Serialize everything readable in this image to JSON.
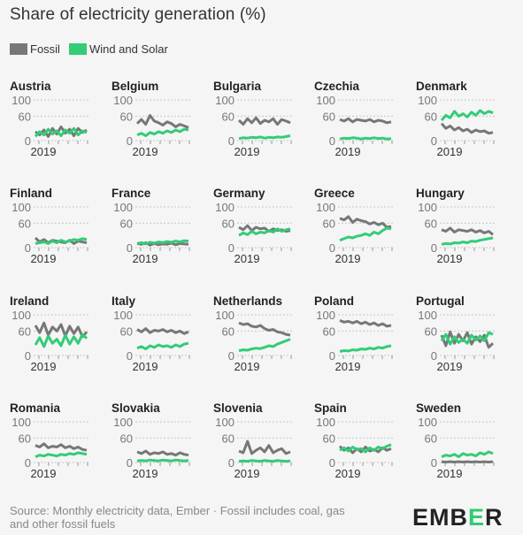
{
  "title": "Share of electricity generation (%)",
  "legend": [
    {
      "name": "Fossil",
      "color": "#777777"
    },
    {
      "name": "Wind and Solar",
      "color": "#33cc77"
    }
  ],
  "source": "Source: Monthly electricity data, Ember · Fossil includes coal, gas and other fossil fuels",
  "logo": {
    "pre": "EMB",
    "accent": "E",
    "post": "R"
  },
  "chart_data": {
    "type": "line",
    "layout": "small-multiples",
    "x_tick_label": "2019",
    "ylim": [
      0,
      100
    ],
    "y_ticks": [
      0,
      60,
      100
    ],
    "panels": [
      {
        "name": "Austria",
        "fossil": [
          22,
          14,
          26,
          10,
          30,
          16,
          34,
          18,
          28,
          12,
          30,
          20,
          26
        ],
        "wind_solar": [
          10,
          22,
          14,
          28,
          16,
          24,
          12,
          26,
          18,
          30,
          14,
          24,
          20
        ]
      },
      {
        "name": "Belgium",
        "fossil": [
          42,
          52,
          40,
          62,
          48,
          44,
          38,
          46,
          42,
          34,
          40,
          36,
          32
        ],
        "wind_solar": [
          14,
          18,
          12,
          20,
          16,
          22,
          18,
          24,
          20,
          26,
          22,
          28,
          26
        ]
      },
      {
        "name": "Bulgaria",
        "fossil": [
          50,
          40,
          54,
          44,
          56,
          42,
          50,
          46,
          54,
          40,
          52,
          48,
          44
        ],
        "wind_solar": [
          5,
          7,
          6,
          8,
          7,
          9,
          6,
          8,
          7,
          9,
          8,
          10,
          12
        ]
      },
      {
        "name": "Czechia",
        "fossil": [
          52,
          48,
          54,
          46,
          52,
          50,
          48,
          52,
          46,
          50,
          48,
          44,
          46
        ],
        "wind_solar": [
          4,
          6,
          5,
          7,
          6,
          4,
          6,
          5,
          7,
          5,
          6,
          4,
          5
        ]
      },
      {
        "name": "Denmark",
        "fossil": [
          42,
          30,
          36,
          26,
          32,
          24,
          28,
          20,
          26,
          22,
          24,
          18,
          20
        ],
        "wind_solar": [
          50,
          62,
          56,
          72,
          60,
          66,
          58,
          70,
          62,
          74,
          66,
          72,
          68
        ]
      },
      {
        "name": "Finland",
        "fossil": [
          24,
          14,
          20,
          12,
          18,
          16,
          14,
          12,
          18,
          10,
          16,
          14,
          12
        ],
        "wind_solar": [
          10,
          12,
          14,
          10,
          16,
          12,
          18,
          14,
          16,
          20,
          18,
          22,
          20
        ]
      },
      {
        "name": "France",
        "fossil": [
          10,
          8,
          12,
          6,
          10,
          7,
          9,
          8,
          11,
          7,
          10,
          9,
          8
        ],
        "wind_solar": [
          10,
          12,
          9,
          13,
          11,
          14,
          12,
          15,
          13,
          16,
          14,
          17,
          16
        ]
      },
      {
        "name": "Germany",
        "fossil": [
          50,
          44,
          54,
          42,
          50,
          46,
          48,
          40,
          46,
          42,
          44,
          40,
          42
        ],
        "wind_solar": [
          30,
          36,
          32,
          40,
          34,
          38,
          36,
          42,
          38,
          46,
          40,
          44,
          46
        ]
      },
      {
        "name": "Greece",
        "fossil": [
          72,
          68,
          76,
          62,
          70,
          66,
          64,
          58,
          62,
          56,
          60,
          50,
          52
        ],
        "wind_solar": [
          18,
          22,
          26,
          24,
          28,
          30,
          34,
          30,
          38,
          34,
          42,
          48,
          46
        ]
      },
      {
        "name": "Hungary",
        "fossil": [
          44,
          40,
          48,
          38,
          44,
          42,
          40,
          44,
          38,
          42,
          36,
          40,
          32
        ],
        "wind_solar": [
          8,
          10,
          9,
          12,
          11,
          14,
          12,
          16,
          15,
          18,
          20,
          22,
          24
        ]
      },
      {
        "name": "Ireland",
        "fossil": [
          74,
          56,
          80,
          50,
          70,
          60,
          76,
          48,
          72,
          54,
          70,
          46,
          58
        ],
        "wind_solar": [
          26,
          44,
          22,
          48,
          30,
          40,
          24,
          50,
          28,
          46,
          30,
          52,
          42
        ]
      },
      {
        "name": "Italy",
        "fossil": [
          64,
          58,
          66,
          56,
          62,
          60,
          64,
          58,
          62,
          56,
          60,
          54,
          58
        ],
        "wind_solar": [
          18,
          22,
          16,
          24,
          20,
          26,
          22,
          24,
          20,
          26,
          22,
          28,
          30
        ]
      },
      {
        "name": "Netherlands",
        "fossil": [
          80,
          76,
          78,
          72,
          70,
          74,
          66,
          62,
          64,
          58,
          56,
          52,
          50
        ],
        "wind_solar": [
          12,
          14,
          13,
          16,
          18,
          17,
          20,
          24,
          22,
          28,
          32,
          36,
          40
        ]
      },
      {
        "name": "Poland",
        "fossil": [
          86,
          82,
          84,
          80,
          84,
          78,
          82,
          76,
          80,
          74,
          78,
          72,
          74
        ],
        "wind_solar": [
          10,
          12,
          11,
          14,
          13,
          16,
          15,
          18,
          16,
          20,
          18,
          22,
          24
        ]
      },
      {
        "name": "Portugal",
        "fossil": [
          50,
          24,
          58,
          30,
          52,
          36,
          56,
          28,
          46,
          34,
          50,
          20,
          30
        ],
        "wind_solar": [
          36,
          52,
          28,
          46,
          32,
          40,
          30,
          50,
          38,
          48,
          36,
          56,
          52
        ]
      },
      {
        "name": "Romania",
        "fossil": [
          42,
          38,
          46,
          36,
          40,
          38,
          44,
          36,
          40,
          34,
          38,
          32,
          30
        ],
        "wind_solar": [
          14,
          18,
          16,
          20,
          18,
          16,
          20,
          18,
          22,
          20,
          24,
          22,
          20
        ]
      },
      {
        "name": "Slovakia",
        "fossil": [
          26,
          22,
          28,
          20,
          24,
          22,
          26,
          20,
          22,
          18,
          24,
          20,
          18
        ],
        "wind_solar": [
          4,
          5,
          4,
          6,
          5,
          4,
          6,
          5,
          4,
          6,
          5,
          4,
          5
        ]
      },
      {
        "name": "Slovenia",
        "fossil": [
          28,
          24,
          52,
          22,
          30,
          36,
          26,
          42,
          24,
          30,
          34,
          22,
          26
        ],
        "wind_solar": [
          3,
          4,
          3,
          5,
          4,
          3,
          5,
          4,
          3,
          5,
          4,
          3,
          4
        ]
      },
      {
        "name": "Spain",
        "fossil": [
          40,
          30,
          36,
          24,
          34,
          26,
          38,
          28,
          32,
          26,
          36,
          30,
          34
        ],
        "wind_solar": [
          30,
          36,
          28,
          38,
          32,
          34,
          26,
          36,
          30,
          38,
          34,
          40,
          44
        ]
      },
      {
        "name": "Sweden",
        "fossil": [
          2,
          1,
          2,
          1,
          2,
          1,
          2,
          1,
          2,
          1,
          2,
          1,
          2
        ],
        "wind_solar": [
          14,
          18,
          16,
          20,
          14,
          22,
          18,
          20,
          16,
          24,
          20,
          26,
          22
        ]
      }
    ]
  }
}
